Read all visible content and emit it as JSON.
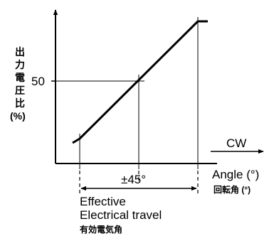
{
  "y_label": [
    "出",
    "力",
    "電",
    "圧",
    "比",
    "(%)"
  ],
  "y_tick": "50",
  "direction_label": "CW",
  "span_label": "±45°",
  "x_label_en": "Angle (°)",
  "x_label_jp": "回転角 (°)",
  "footer": {
    "line1": "Effective",
    "line2": "Electrical travel",
    "line3": "有効電気角"
  }
}
